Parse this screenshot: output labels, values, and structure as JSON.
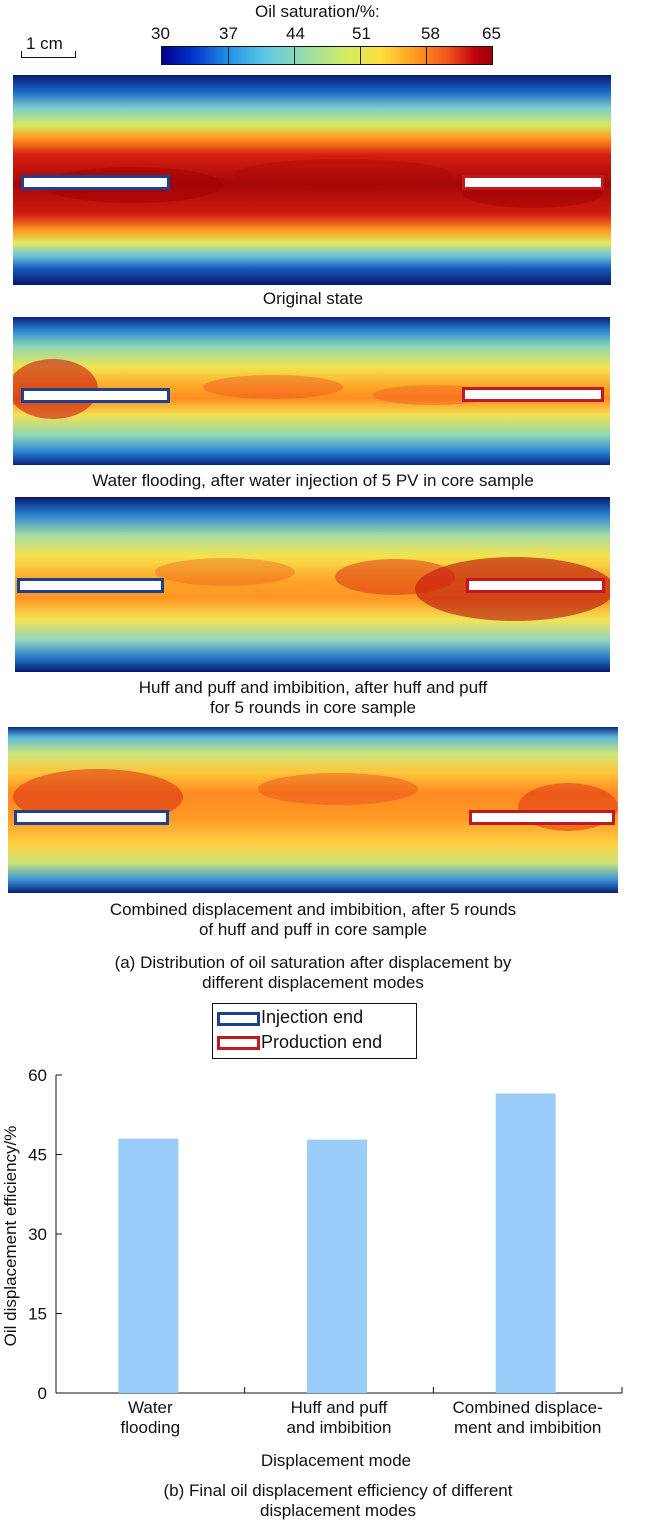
{
  "scale_bar": {
    "label": "1 cm"
  },
  "colorbar": {
    "title": "Oil saturation/%:",
    "ticks": [
      "30",
      "37",
      "44",
      "51",
      "58",
      "65"
    ]
  },
  "cores": [
    {
      "caption": "Original state"
    },
    {
      "caption": "Water flooding, after water injection of 5 PV in core sample"
    },
    {
      "caption": "Huff and puff and imbibition, after huff and puff\nfor 5 rounds in core sample"
    },
    {
      "caption": "Combined displacement and imbibition, after 5 rounds\nof huff and puff in core sample"
    }
  ],
  "panel_a_caption": "(a) Distribution of oil saturation after displacement by\ndifferent displacement  modes",
  "legend": {
    "injection": {
      "label": "Injection end",
      "color": "#1f3f8f"
    },
    "production": {
      "label": "Production end",
      "color": "#c0191f"
    }
  },
  "panel_b_caption": "(b) Final oil displacement efficiency of different\ndisplacement  modes",
  "chart_data": {
    "type": "bar",
    "categories": [
      "Water\nflooding",
      "Huff and puff\nand imbibition",
      "Combined displace-\nment and imbibition"
    ],
    "values": [
      48,
      47.8,
      56.5
    ],
    "xlabel": "Displacement  mode",
    "ylabel": "Oil displacement efficiency/%",
    "yticks": [
      0,
      15,
      30,
      45,
      60
    ],
    "ylim": [
      0,
      60
    ],
    "bar_color": "#99ccf8",
    "grid": false
  }
}
